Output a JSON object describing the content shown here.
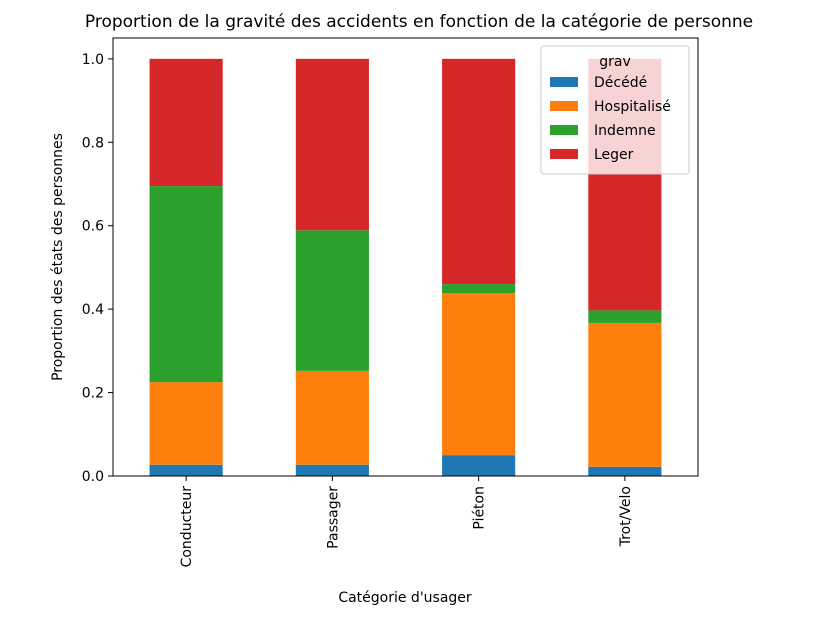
{
  "chart_data": {
    "type": "bar",
    "stacked": true,
    "title": "Proportion de la gravité des accidents en fonction de la catégorie de personne",
    "xlabel": "Catégorie d'usager",
    "ylabel": "Proportion des états des personnes",
    "ylim": [
      0,
      1.05
    ],
    "yticks": [
      "0.0",
      "0.2",
      "0.4",
      "0.6",
      "0.8",
      "1.0"
    ],
    "categories": [
      "Conducteur",
      "Passager",
      "Piéton",
      "Trot/Velo"
    ],
    "series": [
      {
        "name": "Décédé",
        "color": "#1f77b4",
        "values": [
          0.027,
          0.027,
          0.05,
          0.022
        ]
      },
      {
        "name": "Hospitalisé",
        "color": "#ff7f0e",
        "values": [
          0.198,
          0.225,
          0.388,
          0.345
        ]
      },
      {
        "name": "Indemne",
        "color": "#2ca02c",
        "values": [
          0.47,
          0.337,
          0.022,
          0.03
        ]
      },
      {
        "name": "Leger",
        "color": "#d62728",
        "values": [
          0.305,
          0.411,
          0.54,
          0.603
        ]
      }
    ],
    "legend": {
      "title": "grav",
      "placement": "top-right"
    },
    "grid": false
  }
}
